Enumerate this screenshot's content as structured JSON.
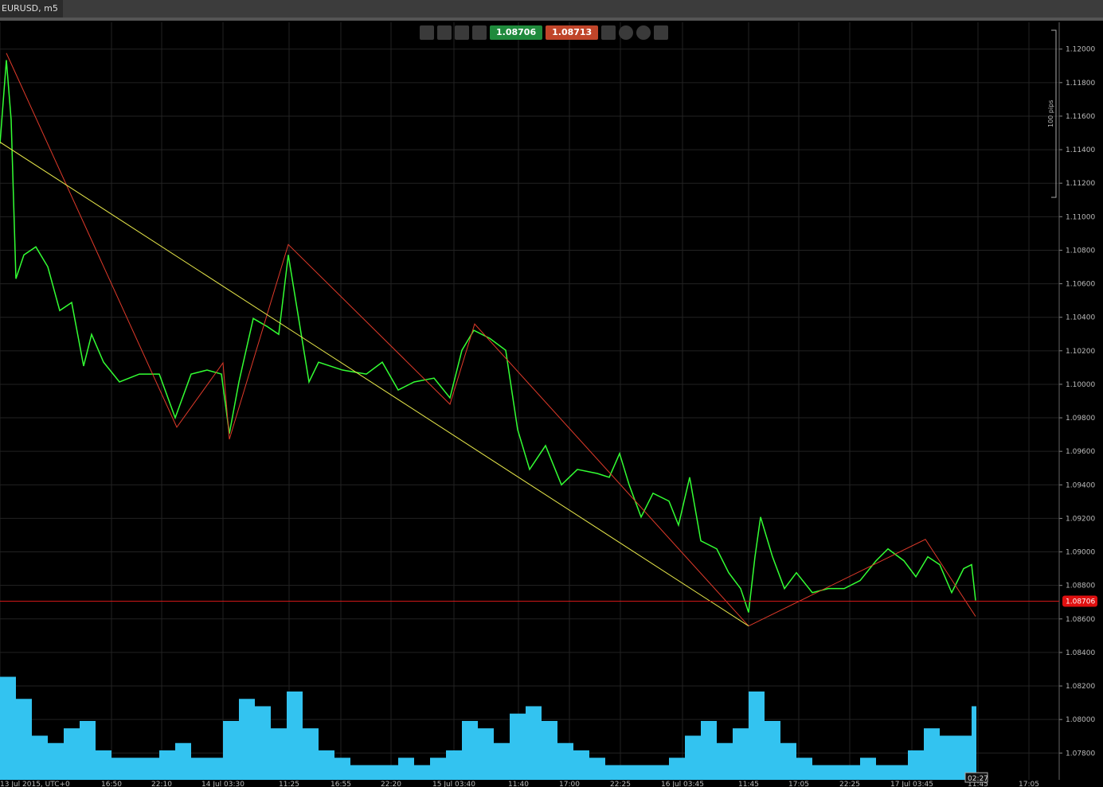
{
  "tab": "EURUSD, m5",
  "toolbar": {
    "sell": "1.08706",
    "buy": "1.08713"
  },
  "range_label": "100 pips",
  "countdown": "02:27",
  "chart_data": {
    "type": "line",
    "xlim": [
      0,
      1330
    ],
    "xticks": [
      {
        "value": 0,
        "label": "13 Jul 2015, UTC+0"
      },
      {
        "value": 140,
        "label": "16:50"
      },
      {
        "value": 203,
        "label": "22:10"
      },
      {
        "value": 280,
        "label": "14 Jul 03:30"
      },
      {
        "value": 363,
        "label": "11:25"
      },
      {
        "value": 428,
        "label": "16:55"
      },
      {
        "value": 491,
        "label": "22:20"
      },
      {
        "value": 570,
        "label": "15 Jul 03:40"
      },
      {
        "value": 651,
        "label": "11:40"
      },
      {
        "value": 715,
        "label": "17:00"
      },
      {
        "value": 779,
        "label": "22:25"
      },
      {
        "value": 857,
        "label": "16 Jul 03:45"
      },
      {
        "value": 940,
        "label": "11:45"
      },
      {
        "value": 1003,
        "label": "17:05"
      },
      {
        "value": 1067,
        "label": "22:25"
      },
      {
        "value": 1145,
        "label": "17 Jul 03:45"
      },
      {
        "value": 1228,
        "label": "11:45"
      },
      {
        "value": 1292,
        "label": "17:05"
      }
    ],
    "ylim": [
      1.0764,
      1.1216
    ],
    "yticks": [
      {
        "value": 1.078,
        "label": "1.07800"
      },
      {
        "value": 1.08,
        "label": "1.08000"
      },
      {
        "value": 1.082,
        "label": "1.08200"
      },
      {
        "value": 1.084,
        "label": "1.08400"
      },
      {
        "value": 1.086,
        "label": "1.08600"
      },
      {
        "value": 1.088,
        "label": "1.08800"
      },
      {
        "value": 1.09,
        "label": "1.09000"
      },
      {
        "value": 1.092,
        "label": "1.09200"
      },
      {
        "value": 1.094,
        "label": "1.09400"
      },
      {
        "value": 1.096,
        "label": "1.09600"
      },
      {
        "value": 1.098,
        "label": "1.09800"
      },
      {
        "value": 1.1,
        "label": "1.10000"
      },
      {
        "value": 1.102,
        "label": "1.10200"
      },
      {
        "value": 1.104,
        "label": "1.10400"
      },
      {
        "value": 1.106,
        "label": "1.10600"
      },
      {
        "value": 1.108,
        "label": "1.10800"
      },
      {
        "value": 1.11,
        "label": "1.11000"
      },
      {
        "value": 1.112,
        "label": "1.11200"
      },
      {
        "value": 1.114,
        "label": "1.11400"
      },
      {
        "value": 1.116,
        "label": "1.11600"
      },
      {
        "value": 1.118,
        "label": "1.11800"
      },
      {
        "value": 1.12,
        "label": "1.12000"
      }
    ],
    "y2lim": [
      0,
      100
    ],
    "grid": true,
    "current_price": 1.08706,
    "series": [
      {
        "color": "#33ff33",
        "x": [
          0,
          8,
          14,
          20,
          30,
          45,
          60,
          75,
          90,
          105,
          115,
          130,
          150,
          175,
          200,
          220,
          240,
          260,
          278,
          288,
          300,
          318,
          335,
          350,
          362,
          375,
          388,
          400,
          430,
          460,
          480,
          500,
          520,
          545,
          565,
          580,
          595,
          615,
          635,
          650,
          665,
          685,
          705,
          725,
          750,
          765,
          778,
          790,
          805,
          820,
          840,
          852,
          866,
          880,
          900,
          915,
          930,
          940,
          948,
          955,
          970,
          985,
          1000,
          1020,
          1040,
          1060,
          1080,
          1100,
          1115,
          1135,
          1150,
          1165,
          1180,
          1195,
          1210,
          1220,
          1225
        ],
        "values": [
          1.11436,
          1.11934,
          1.11578,
          1.1063,
          1.10772,
          1.1082,
          1.10701,
          1.1044,
          1.10488,
          1.10109,
          1.10298,
          1.10132,
          1.10014,
          1.10061,
          1.10061,
          1.098,
          1.10061,
          1.10085,
          1.10061,
          1.09706,
          1.10014,
          1.10393,
          1.10346,
          1.10298,
          1.10772,
          1.10393,
          1.10014,
          1.10132,
          1.10085,
          1.10061,
          1.10132,
          1.09966,
          1.10014,
          1.10037,
          1.09919,
          1.10203,
          1.10322,
          1.10274,
          1.10203,
          1.09729,
          1.09492,
          1.09634,
          1.094,
          1.09492,
          1.09468,
          1.09445,
          1.09587,
          1.094,
          1.09208,
          1.0935,
          1.09303,
          1.0916,
          1.09445,
          1.09066,
          1.09018,
          1.08876,
          1.08781,
          1.08639,
          1.08971,
          1.09208,
          1.08971,
          1.08781,
          1.08876,
          1.08757,
          1.08781,
          1.08781,
          1.08829,
          1.08947,
          1.09018,
          1.08947,
          1.08852,
          1.08971,
          1.08924,
          1.08757,
          1.089,
          1.08924,
          1.0871
        ]
      },
      {
        "color": "#e03a2a",
        "x": [
          8,
          222,
          280,
          288,
          362,
          565,
          596,
          940,
          1162,
          1225
        ],
        "values": [
          1.11976,
          1.09744,
          1.10128,
          1.09672,
          1.10834,
          1.09881,
          1.1036,
          1.08558,
          1.09075,
          1.08615
        ]
      },
      {
        "color": "#e8e84a",
        "x": [
          0,
          940
        ],
        "values": [
          1.11445,
          1.08558
        ]
      },
      {
        "color": "#33c3f0",
        "axis": "y2",
        "x": [
          0,
          20,
          40,
          60,
          80,
          100,
          120,
          140,
          160,
          180,
          200,
          220,
          240,
          260,
          280,
          300,
          320,
          340,
          360,
          380,
          400,
          420,
          440,
          460,
          480,
          500,
          520,
          540,
          560,
          580,
          600,
          620,
          640,
          660,
          680,
          700,
          720,
          740,
          760,
          780,
          800,
          820,
          840,
          860,
          880,
          900,
          920,
          940,
          960,
          980,
          1000,
          1020,
          1040,
          1060,
          1080,
          1100,
          1120,
          1140,
          1160,
          1180,
          1200,
          1220
        ],
        "values": [
          70,
          55,
          30,
          25,
          35,
          40,
          20,
          15,
          15,
          15,
          20,
          25,
          15,
          15,
          40,
          55,
          50,
          35,
          60,
          35,
          20,
          15,
          10,
          10,
          10,
          15,
          10,
          15,
          20,
          40,
          35,
          25,
          45,
          50,
          40,
          25,
          20,
          15,
          10,
          10,
          10,
          10,
          15,
          30,
          40,
          25,
          35,
          60,
          40,
          25,
          15,
          10,
          10,
          10,
          15,
          10,
          10,
          20,
          35,
          30,
          30,
          50
        ]
      }
    ]
  }
}
